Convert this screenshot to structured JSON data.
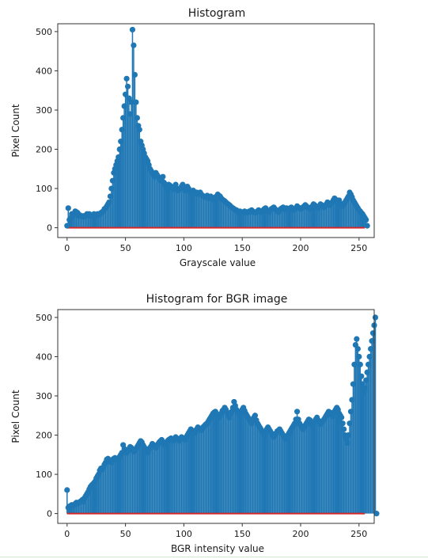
{
  "colors": {
    "stem": "#1f77b4",
    "baseline": "#d62728"
  },
  "chart_data": [
    {
      "type": "stem",
      "title": "Histogram",
      "xlabel": "Grayscale value",
      "ylabel": "Pixel Count",
      "xlim": [
        -8,
        263
      ],
      "ylim": [
        -25,
        520
      ],
      "xticks": [
        0,
        50,
        100,
        150,
        200,
        250
      ],
      "yticks": [
        0,
        100,
        200,
        300,
        400,
        500
      ],
      "grid": false,
      "x_range": [
        0,
        255
      ],
      "values": [
        5,
        50,
        20,
        25,
        35,
        30,
        35,
        42,
        40,
        38,
        30,
        32,
        30,
        28,
        30,
        28,
        30,
        35,
        32,
        35,
        30,
        28,
        32,
        35,
        30,
        30,
        35,
        32,
        35,
        38,
        40,
        42,
        48,
        50,
        55,
        60,
        65,
        80,
        100,
        120,
        140,
        150,
        160,
        170,
        180,
        200,
        220,
        250,
        280,
        310,
        340,
        380,
        360,
        330,
        290,
        320,
        505,
        465,
        390,
        320,
        280,
        260,
        250,
        220,
        210,
        200,
        190,
        180,
        175,
        170,
        160,
        150,
        145,
        140,
        135,
        130,
        140,
        135,
        130,
        125,
        120,
        125,
        130,
        115,
        110,
        105,
        100,
        110,
        108,
        105,
        100,
        98,
        105,
        110,
        100,
        95,
        98,
        100,
        105,
        110,
        100,
        95,
        98,
        105,
        100,
        95,
        90,
        92,
        95,
        90,
        88,
        90,
        85,
        88,
        90,
        85,
        82,
        80,
        78,
        80,
        82,
        75,
        78,
        80,
        76,
        72,
        75,
        78,
        80,
        85,
        82,
        80,
        75,
        72,
        70,
        68,
        65,
        62,
        60,
        58,
        55,
        52,
        50,
        48,
        45,
        45,
        42,
        40,
        42,
        40,
        38,
        38,
        42,
        40,
        38,
        40,
        42,
        40,
        45,
        42,
        40,
        38,
        40,
        42,
        45,
        42,
        40,
        42,
        45,
        48,
        50,
        45,
        42,
        40,
        45,
        48,
        50,
        52,
        48,
        45,
        42,
        40,
        45,
        48,
        50,
        52,
        48,
        45,
        50,
        48,
        45,
        50,
        52,
        48,
        45,
        48,
        50,
        55,
        52,
        50,
        48,
        50,
        52,
        55,
        58,
        55,
        52,
        50,
        48,
        52,
        55,
        60,
        58,
        55,
        52,
        50,
        55,
        60,
        58,
        55,
        52,
        55,
        60,
        65,
        62,
        58,
        60,
        65,
        70,
        75,
        72,
        68,
        65,
        70,
        62,
        58,
        55,
        60,
        65,
        70,
        75,
        80,
        90,
        85,
        78,
        70,
        65,
        60,
        55,
        50,
        45,
        42,
        38,
        35,
        30,
        25,
        20,
        5
      ]
    },
    {
      "type": "stem",
      "title": "Histogram for BGR image",
      "xlabel": "BGR intensity value",
      "ylabel": "Pixel Count",
      "xlim": [
        -8,
        263
      ],
      "ylim": [
        -25,
        520
      ],
      "xticks": [
        0,
        50,
        100,
        150,
        200,
        250
      ],
      "yticks": [
        0,
        100,
        200,
        300,
        400,
        500
      ],
      "grid": false,
      "x_range": [
        0,
        255
      ],
      "values": [
        60,
        15,
        18,
        20,
        22,
        20,
        22,
        25,
        28,
        25,
        28,
        30,
        32,
        35,
        30,
        40,
        45,
        50,
        55,
        62,
        68,
        72,
        75,
        78,
        82,
        90,
        95,
        100,
        110,
        115,
        112,
        118,
        125,
        130,
        138,
        140,
        135,
        132,
        130,
        138,
        140,
        142,
        138,
        135,
        140,
        145,
        150,
        155,
        175,
        165,
        160,
        155,
        160,
        165,
        170,
        168,
        162,
        158,
        160,
        165,
        170,
        175,
        180,
        185,
        182,
        175,
        170,
        165,
        160,
        155,
        162,
        168,
        172,
        178,
        175,
        170,
        168,
        172,
        178,
        182,
        185,
        188,
        180,
        175,
        178,
        182,
        185,
        188,
        190,
        192,
        188,
        185,
        190,
        195,
        192,
        188,
        185,
        190,
        195,
        192,
        190,
        188,
        195,
        200,
        205,
        210,
        215,
        212,
        208,
        205,
        210,
        215,
        220,
        218,
        215,
        212,
        218,
        222,
        225,
        228,
        230,
        235,
        240,
        245,
        250,
        255,
        258,
        260,
        255,
        250,
        245,
        250,
        255,
        262,
        265,
        270,
        265,
        258,
        250,
        245,
        255,
        260,
        270,
        285,
        275,
        265,
        260,
        255,
        250,
        260,
        265,
        270,
        262,
        255,
        250,
        245,
        240,
        235,
        230,
        240,
        245,
        250,
        238,
        230,
        225,
        220,
        215,
        210,
        205,
        200,
        210,
        215,
        220,
        215,
        210,
        205,
        200,
        195,
        200,
        205,
        210,
        212,
        215,
        210,
        205,
        200,
        195,
        190,
        195,
        200,
        205,
        210,
        215,
        220,
        225,
        230,
        240,
        260,
        240,
        230,
        225,
        220,
        215,
        220,
        225,
        230,
        235,
        240,
        238,
        230,
        225,
        230,
        235,
        240,
        245,
        238,
        232,
        228,
        232,
        236,
        240,
        245,
        250,
        255,
        260,
        258,
        252,
        248,
        255,
        260,
        265,
        270,
        265,
        255,
        250,
        245,
        230,
        215,
        200,
        190,
        180,
        200,
        230,
        260,
        290,
        330,
        380,
        430,
        445,
        420,
        400,
        380,
        350,
        330,
        310,
        320,
        340,
        360,
        380,
        400,
        420,
        440,
        460,
        480,
        500,
        0
      ]
    }
  ]
}
